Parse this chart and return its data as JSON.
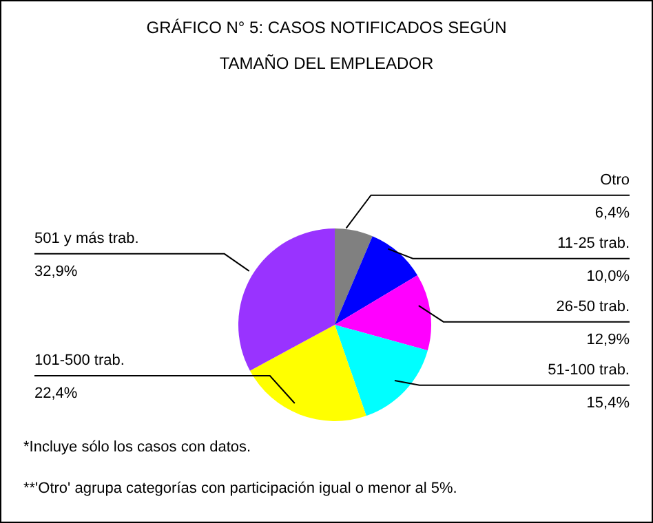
{
  "chart_data": {
    "type": "pie",
    "title": "GRÁFICO N° 5: CASOS NOTIFICADOS SEGÚN\nTAMAÑO DEL EMPLEADOR",
    "categories": [
      "Otro",
      "11-25 trab.",
      "26-50 trab.",
      "51-100 trab.",
      "101-500 trab.",
      "501 y más trab."
    ],
    "values": [
      6.4,
      10.0,
      12.9,
      15.4,
      22.4,
      32.9
    ],
    "colors": [
      "#808080",
      "#0000ff",
      "#ff00ff",
      "#00ffff",
      "#ffff00",
      "#9933ff"
    ],
    "value_labels": [
      "6,4%",
      "10,0%",
      "12,9%",
      "15,4%",
      "22,4%",
      "32,9%"
    ],
    "annotations": [
      "*Incluye sólo los casos con datos.",
      "**'Otro' agrupa categorías con participación igual o menor al 5%."
    ]
  }
}
